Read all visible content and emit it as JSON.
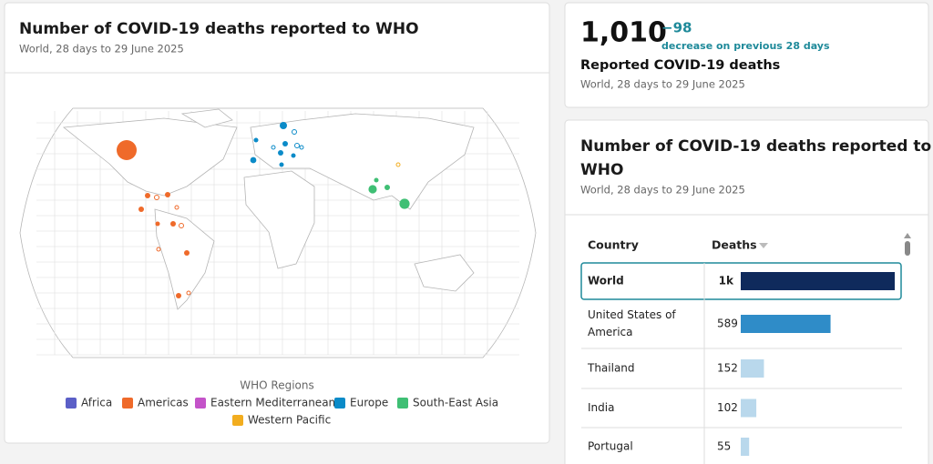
{
  "summary": {
    "value": "1,010",
    "change": "−98",
    "change_text": "decrease on previous 28 days",
    "label": "Reported COVID-19 deaths",
    "subtitle": "World, 28 days to 29 June 2025"
  },
  "map_panel": {
    "title": "Number of COVID-19 deaths reported to WHO",
    "subtitle": "World, 28 days to 29 June 2025",
    "legend_title": "WHO Regions",
    "legend": [
      {
        "name": "Africa",
        "color": "#5b5fc7"
      },
      {
        "name": "Americas",
        "color": "#ef6a2a"
      },
      {
        "name": "Eastern Mediterranean",
        "color": "#c453c9"
      },
      {
        "name": "Europe",
        "color": "#0b8bc8"
      },
      {
        "name": "South-East Asia",
        "color": "#3fbf74"
      },
      {
        "name": "Western Pacific",
        "color": "#f2ad1f"
      }
    ]
  },
  "table_panel": {
    "title": [
      "Number of COVID-19 deaths reported to",
      "WHO"
    ],
    "subtitle": "World, 28 days to 29 June 2025",
    "columns": [
      "Country",
      "Deaths"
    ],
    "rows": [
      {
        "country": [
          "World"
        ],
        "value": 1010,
        "value_label": "1k",
        "color": "#0f2a5c"
      },
      {
        "country": [
          "United States of",
          "America"
        ],
        "value": 589,
        "color": "#2f8cc8"
      },
      {
        "country": [
          "Thailand"
        ],
        "value": 152,
        "color": "#b9d8ec"
      },
      {
        "country": [
          "India"
        ],
        "value": 102,
        "color": "#b9d8ec"
      },
      {
        "country": [
          "Portugal"
        ],
        "value": 55,
        "color": "#b9d8ec"
      }
    ]
  }
}
